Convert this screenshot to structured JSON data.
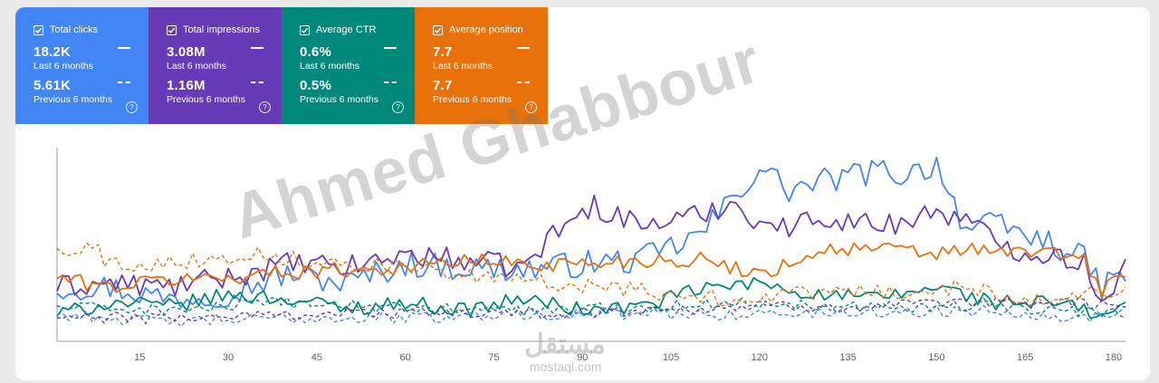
{
  "metrics": [
    {
      "label": "Total clicks",
      "current": "18.2K",
      "current_period": "Last 6 months",
      "previous": "5.61K",
      "previous_period": "Previous 6 months",
      "color": "#4285f4",
      "help": "?"
    },
    {
      "label": "Total impressions",
      "current": "3.08M",
      "current_period": "Last 6 months",
      "previous": "1.16M",
      "previous_period": "Previous 6 months",
      "color": "#673ab7",
      "help": "?"
    },
    {
      "label": "Average CTR",
      "current": "0.6%",
      "current_period": "Last 6 months",
      "previous": "0.5%",
      "previous_period": "Previous 6 months",
      "color": "#00897b",
      "help": "?"
    },
    {
      "label": "Average position",
      "current": "7.7",
      "current_period": "Last 6 months",
      "previous": "7.7",
      "previous_period": "Previous 6 months",
      "color": "#e8710a",
      "help": "?"
    }
  ],
  "watermark": "Ahmed Ghabbour",
  "logo": {
    "mark": "مستقل",
    "text": "mostaql.com"
  },
  "chart_data": {
    "type": "line",
    "xlim": [
      1,
      182
    ],
    "ylim": [
      0,
      100
    ],
    "x_ticks": [
      15,
      30,
      45,
      60,
      75,
      90,
      105,
      120,
      135,
      150,
      165,
      180
    ],
    "grid": false,
    "series": [
      {
        "name": "Total clicks",
        "period": "Last 6 months",
        "color": "#4285f4",
        "style": "solid",
        "keyframes": [
          [
            1,
            28
          ],
          [
            10,
            28
          ],
          [
            20,
            22
          ],
          [
            30,
            25
          ],
          [
            40,
            35
          ],
          [
            50,
            30
          ],
          [
            60,
            40
          ],
          [
            70,
            38
          ],
          [
            80,
            37
          ],
          [
            90,
            40
          ],
          [
            100,
            42
          ],
          [
            110,
            55
          ],
          [
            115,
            72
          ],
          [
            120,
            90
          ],
          [
            125,
            78
          ],
          [
            130,
            82
          ],
          [
            140,
            88
          ],
          [
            145,
            86
          ],
          [
            150,
            92
          ],
          [
            155,
            58
          ],
          [
            160,
            60
          ],
          [
            165,
            55
          ],
          [
            170,
            50
          ],
          [
            175,
            42
          ],
          [
            178,
            28
          ],
          [
            182,
            35
          ]
        ]
      },
      {
        "name": "Total impressions",
        "period": "Last 6 months",
        "color": "#673ab7",
        "style": "solid",
        "keyframes": [
          [
            1,
            28
          ],
          [
            10,
            30
          ],
          [
            20,
            28
          ],
          [
            30,
            33
          ],
          [
            40,
            40
          ],
          [
            50,
            38
          ],
          [
            60,
            45
          ],
          [
            70,
            42
          ],
          [
            80,
            38
          ],
          [
            85,
            55
          ],
          [
            88,
            62
          ],
          [
            92,
            70
          ],
          [
            96,
            65
          ],
          [
            100,
            60
          ],
          [
            110,
            65
          ],
          [
            115,
            72
          ],
          [
            120,
            62
          ],
          [
            125,
            58
          ],
          [
            130,
            65
          ],
          [
            135,
            62
          ],
          [
            140,
            60
          ],
          [
            145,
            62
          ],
          [
            150,
            68
          ],
          [
            155,
            62
          ],
          [
            160,
            52
          ],
          [
            165,
            46
          ],
          [
            170,
            45
          ],
          [
            175,
            40
          ],
          [
            178,
            22
          ],
          [
            182,
            38
          ]
        ]
      },
      {
        "name": "Average CTR",
        "period": "Last 6 months",
        "color": "#00897b",
        "style": "solid",
        "keyframes": [
          [
            1,
            14
          ],
          [
            10,
            20
          ],
          [
            20,
            18
          ],
          [
            30,
            24
          ],
          [
            40,
            22
          ],
          [
            50,
            17
          ],
          [
            60,
            20
          ],
          [
            70,
            16
          ],
          [
            80,
            22
          ],
          [
            90,
            16
          ],
          [
            100,
            18
          ],
          [
            110,
            27
          ],
          [
            120,
            30
          ],
          [
            130,
            24
          ],
          [
            140,
            22
          ],
          [
            150,
            28
          ],
          [
            160,
            20
          ],
          [
            170,
            20
          ],
          [
            175,
            16
          ],
          [
            178,
            12
          ],
          [
            182,
            20
          ]
        ]
      },
      {
        "name": "Average position",
        "period": "Last 6 months",
        "color": "#e8710a",
        "style": "solid",
        "keyframes": [
          [
            1,
            33
          ],
          [
            10,
            28
          ],
          [
            20,
            32
          ],
          [
            30,
            33
          ],
          [
            40,
            36
          ],
          [
            50,
            37
          ],
          [
            60,
            38
          ],
          [
            70,
            42
          ],
          [
            80,
            40
          ],
          [
            90,
            40
          ],
          [
            100,
            42
          ],
          [
            110,
            42
          ],
          [
            120,
            35
          ],
          [
            125,
            40
          ],
          [
            130,
            47
          ],
          [
            140,
            48
          ],
          [
            150,
            45
          ],
          [
            155,
            48
          ],
          [
            160,
            45
          ],
          [
            165,
            47
          ],
          [
            170,
            45
          ],
          [
            175,
            42
          ],
          [
            178,
            26
          ],
          [
            182,
            36
          ]
        ]
      },
      {
        "name": "Total clicks",
        "period": "Previous 6 months",
        "color": "#4285f4",
        "style": "dashed",
        "keyframes": [
          [
            1,
            14
          ],
          [
            20,
            10
          ],
          [
            40,
            12
          ],
          [
            60,
            12
          ],
          [
            80,
            14
          ],
          [
            100,
            14
          ],
          [
            120,
            14
          ],
          [
            140,
            15
          ],
          [
            160,
            16
          ],
          [
            175,
            12
          ],
          [
            182,
            16
          ]
        ]
      },
      {
        "name": "Total impressions",
        "period": "Previous 6 months",
        "color": "#673ab7",
        "style": "dashed",
        "keyframes": [
          [
            1,
            12
          ],
          [
            20,
            12
          ],
          [
            40,
            14
          ],
          [
            60,
            15
          ],
          [
            80,
            14
          ],
          [
            100,
            16
          ],
          [
            120,
            18
          ],
          [
            140,
            18
          ],
          [
            160,
            20
          ],
          [
            175,
            20
          ],
          [
            182,
            18
          ]
        ]
      },
      {
        "name": "Average CTR",
        "period": "Previous 6 months",
        "color": "#00897b",
        "style": "dashed",
        "keyframes": [
          [
            1,
            18
          ],
          [
            20,
            16
          ],
          [
            40,
            20
          ],
          [
            60,
            17
          ],
          [
            80,
            16
          ],
          [
            100,
            18
          ],
          [
            120,
            20
          ],
          [
            140,
            18
          ],
          [
            160,
            18
          ],
          [
            175,
            15
          ],
          [
            182,
            14
          ]
        ]
      },
      {
        "name": "Average position",
        "period": "Previous 6 months",
        "color": "#e8710a",
        "style": "dashed",
        "keyframes": [
          [
            1,
            47
          ],
          [
            5,
            48
          ],
          [
            8,
            49
          ],
          [
            9,
            40
          ],
          [
            15,
            40
          ],
          [
            25,
            42
          ],
          [
            35,
            45
          ],
          [
            45,
            41
          ],
          [
            55,
            40
          ],
          [
            65,
            36
          ],
          [
            75,
            32
          ],
          [
            85,
            30
          ],
          [
            95,
            28
          ],
          [
            105,
            24
          ],
          [
            115,
            22
          ],
          [
            125,
            24
          ],
          [
            135,
            26
          ],
          [
            145,
            25
          ],
          [
            155,
            28
          ],
          [
            165,
            22
          ],
          [
            175,
            24
          ],
          [
            182,
            26
          ]
        ]
      }
    ]
  }
}
